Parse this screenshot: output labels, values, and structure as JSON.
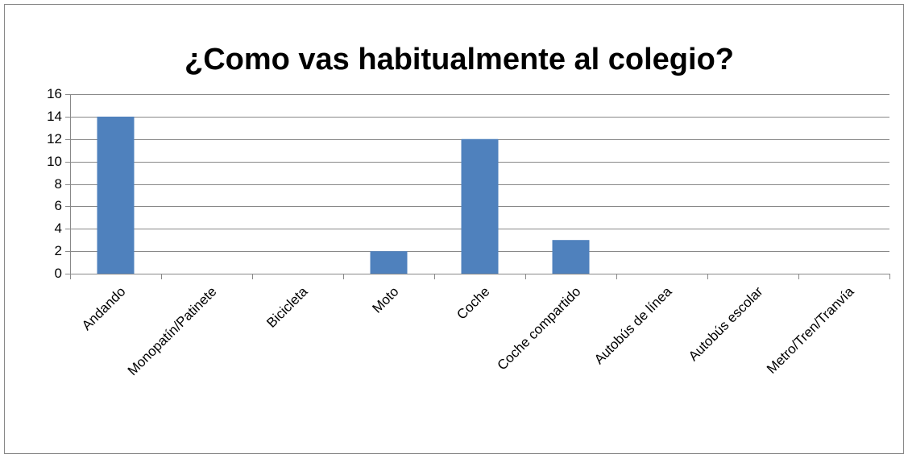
{
  "chart_data": {
    "type": "bar",
    "title": "¿Como vas habitualmente al colegio?",
    "categories": [
      "Andando",
      "Monopatín/Patinete",
      "Bicicleta",
      "Moto",
      "Coche",
      "Coche compartido",
      "Autobús de línea",
      "Autobús escolar",
      "Metro/Tren/Tranvía"
    ],
    "values": [
      14,
      0,
      0,
      2,
      12,
      3,
      0,
      0,
      0
    ],
    "color": "#4f81bd",
    "ylim": [
      0,
      16
    ],
    "yticks": [
      0,
      2,
      4,
      6,
      8,
      10,
      12,
      14,
      16
    ],
    "grid": true
  }
}
